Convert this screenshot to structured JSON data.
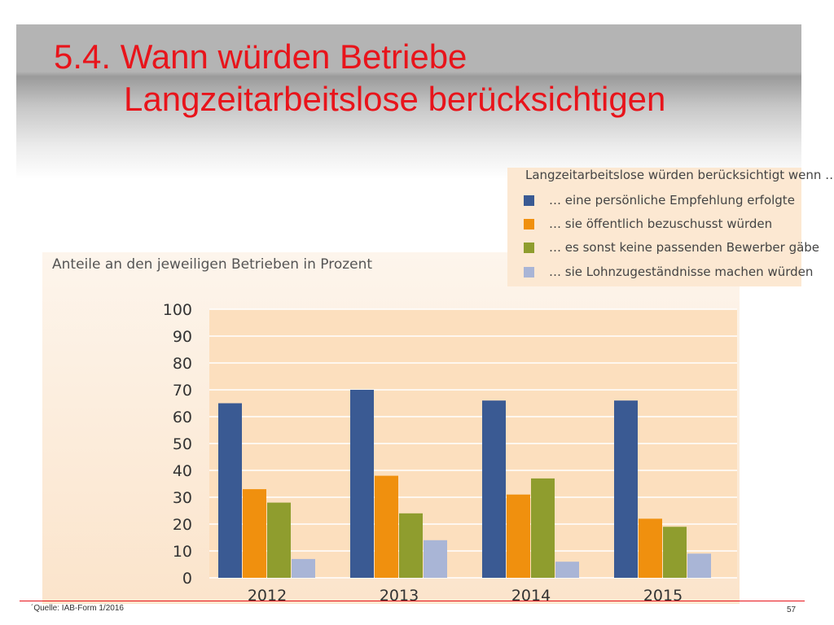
{
  "slide": {
    "title_line1": "5.4. Wann würden Betriebe",
    "title_line2": "Langzeitarbeitslose berücksichtigen",
    "source": "´Quelle: IAB-Form 1/2016",
    "page_number": "57"
  },
  "colors": {
    "title": "#e8141b",
    "series": [
      "#3a5a93",
      "#f0900e",
      "#8f9d2e",
      "#a9b5d6"
    ]
  },
  "chart_data": {
    "type": "bar",
    "title": "Anteile an den jeweiligen Betrieben in Prozent",
    "legend_title": "Langzeitarbeitslose würden berücksichtigt wenn …",
    "legend_placement": "top-right",
    "categories": [
      "2012",
      "2013",
      "2014",
      "2015"
    ],
    "series": [
      {
        "name": "… eine persönliche Empfehlung erfolgte",
        "values": [
          65,
          70,
          66,
          66
        ]
      },
      {
        "name": "… sie öffentlich bezuschusst würden",
        "values": [
          33,
          38,
          31,
          22
        ]
      },
      {
        "name": "… es sonst keine passenden Bewerber gäbe",
        "values": [
          28,
          24,
          37,
          19
        ]
      },
      {
        "name": "… sie Lohnzugeständnisse machen würden",
        "values": [
          7,
          14,
          6,
          9
        ]
      }
    ],
    "ylim": [
      0,
      100
    ],
    "yticks": [
      "0",
      "10",
      "20",
      "30",
      "40",
      "50",
      "60",
      "70",
      "80",
      "90",
      "100"
    ],
    "grid": true
  }
}
